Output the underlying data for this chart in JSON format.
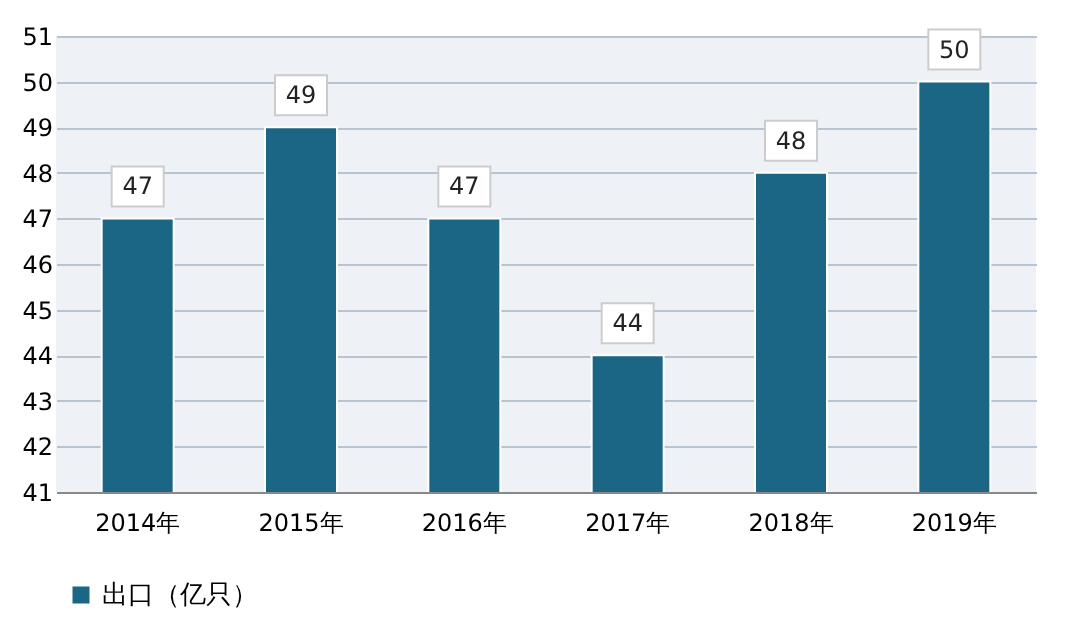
{
  "chart_data": {
    "type": "bar",
    "categories": [
      "2014年",
      "2015年",
      "2016年",
      "2017年",
      "2018年",
      "2019年"
    ],
    "series": [
      {
        "name": "出口（亿只）",
        "color": "#1b6585",
        "values": [
          47,
          49,
          47,
          44,
          48,
          50
        ]
      }
    ],
    "ylim": [
      41,
      51
    ],
    "yticks": [
      41,
      42,
      43,
      44,
      45,
      46,
      47,
      48,
      49,
      50,
      51
    ],
    "grid": "y",
    "legend": "bottom",
    "data_labels": true
  }
}
